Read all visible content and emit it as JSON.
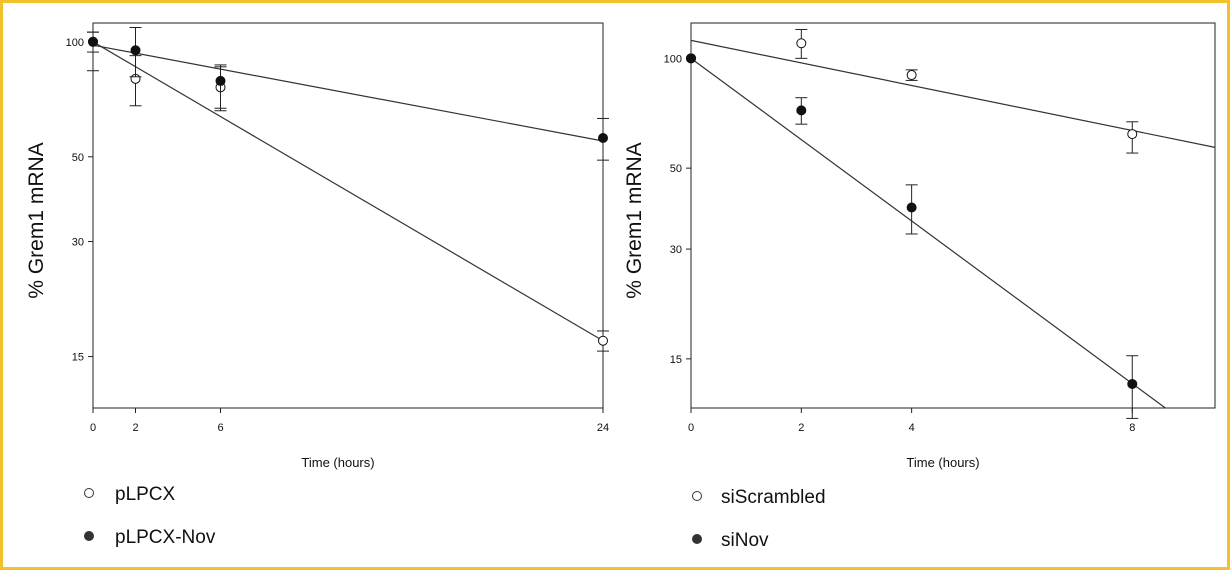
{
  "chart_data": [
    {
      "type": "scatter",
      "xlabel": "Time (hours)",
      "ylabel": "% Grem1 mRNA",
      "yscale": "log",
      "xlim": [
        0,
        24
      ],
      "ylim": [
        11,
        112
      ],
      "xticks": [
        0,
        2,
        6,
        24
      ],
      "yticks": [
        15,
        30,
        50,
        100
      ],
      "legend_position": "bottom-left",
      "series": [
        {
          "name": "pLPCX",
          "marker": "open-circle",
          "x": [
            0,
            2,
            6,
            24
          ],
          "y": [
            100,
            80,
            76,
            16.5
          ],
          "err_lo": [
            16,
            12,
            10,
            1.0
          ],
          "err_hi": [
            6,
            12,
            10,
            1.0
          ],
          "fit": [
            [
              0,
              100
            ],
            [
              24,
              16.5
            ]
          ]
        },
        {
          "name": "pLPCX-Nov",
          "marker": "filled-circle",
          "x": [
            0,
            2,
            6,
            24
          ],
          "y": [
            100,
            95,
            79,
            56
          ],
          "err_lo": [
            6,
            14,
            12,
            7
          ],
          "err_hi": [
            6,
            14,
            8,
            7
          ],
          "fit": [
            [
              0,
              98
            ],
            [
              24,
              55
            ]
          ]
        }
      ]
    },
    {
      "type": "scatter",
      "xlabel": "Time (hours)",
      "ylabel": "% Grem1 mRNA",
      "yscale": "log",
      "xlim": [
        0,
        9.5
      ],
      "ylim": [
        11,
        125
      ],
      "xticks": [
        0,
        2,
        4,
        8
      ],
      "yticks": [
        15,
        30,
        50,
        100
      ],
      "legend_position": "bottom-left",
      "series": [
        {
          "name": "siScrambled",
          "marker": "open-circle",
          "x": [
            0,
            2,
            4,
            8
          ],
          "y": [
            100,
            110,
            90,
            62
          ],
          "err_lo": [
            0,
            10,
            3,
            7
          ],
          "err_hi": [
            0,
            10,
            3,
            5
          ],
          "fit": [
            [
              0,
              112
            ],
            [
              9.5,
              57
            ]
          ]
        },
        {
          "name": "siNov",
          "marker": "filled-circle",
          "x": [
            0,
            2,
            4,
            8
          ],
          "y": [
            100,
            72,
            39,
            12.8
          ],
          "err_lo": [
            0,
            6,
            6,
            2.5
          ],
          "err_hi": [
            0,
            6,
            6,
            2.5
          ],
          "fit": [
            [
              0,
              100
            ],
            [
              8.6,
              11
            ]
          ]
        }
      ]
    }
  ]
}
